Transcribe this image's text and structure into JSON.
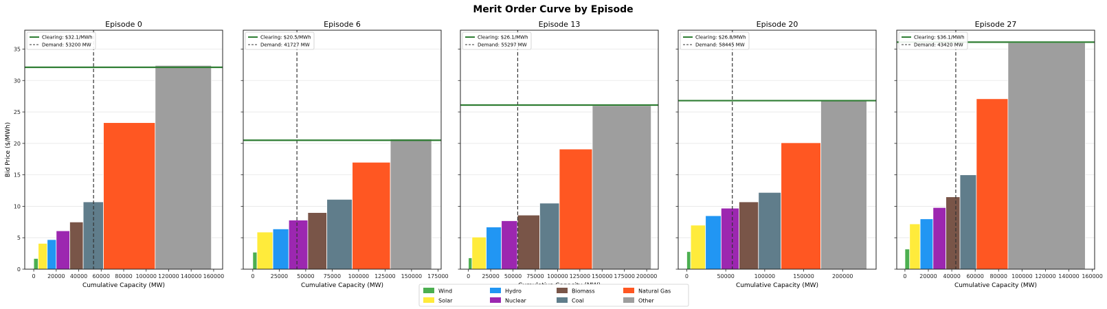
{
  "figure": {
    "title": "Merit Order Curve by Episode"
  },
  "legend_items": [
    {
      "name": "Wind",
      "color": "#4caf50"
    },
    {
      "name": "Solar",
      "color": "#ffeb3b"
    },
    {
      "name": "Hydro",
      "color": "#2196f3"
    },
    {
      "name": "Nuclear",
      "color": "#9c27b0"
    },
    {
      "name": "Biomass",
      "color": "#795548"
    },
    {
      "name": "Coal",
      "color": "#607d8b"
    },
    {
      "name": "Natural Gas",
      "color": "#ff5722"
    },
    {
      "name": "Other",
      "color": "#9e9e9e"
    }
  ],
  "chart_data": [
    {
      "type": "bar",
      "title": "Episode 0",
      "xlabel": "Cumulative Capacity (MW)",
      "ylabel": "Bid Price ($/MWh)",
      "xlim": [
        -8000,
        168000
      ],
      "ylim": [
        0,
        38
      ],
      "xticks": [
        0,
        20000,
        40000,
        60000,
        80000,
        100000,
        120000,
        140000,
        160000
      ],
      "yticks": [
        0,
        5,
        10,
        15,
        20,
        25,
        30,
        35
      ],
      "grid": true,
      "legend_position": "top-left",
      "bars": [
        {
          "source": "Wind",
          "x_start": 0,
          "x_end": 4000,
          "price": 1.7
        },
        {
          "source": "Solar",
          "x_start": 4000,
          "x_end": 12000,
          "price": 4.1
        },
        {
          "source": "Hydro",
          "x_start": 12000,
          "x_end": 20000,
          "price": 4.7
        },
        {
          "source": "Nuclear",
          "x_start": 20000,
          "x_end": 32000,
          "price": 6.1
        },
        {
          "source": "Biomass",
          "x_start": 32000,
          "x_end": 44000,
          "price": 7.5
        },
        {
          "source": "Coal",
          "x_start": 44000,
          "x_end": 62000,
          "price": 10.7
        },
        {
          "source": "Natural Gas",
          "x_start": 62000,
          "x_end": 108000,
          "price": 23.3
        },
        {
          "source": "Other",
          "x_start": 108000,
          "x_end": 158000,
          "price": 32.4
        }
      ],
      "clearing_price": 32.1,
      "demand": 53200,
      "legend_clearing": "Clearing: $32.1/MWh",
      "legend_demand": "Demand: 53200 MW"
    },
    {
      "type": "bar",
      "title": "Episode 6",
      "xlabel": "Cumulative Capacity (MW)",
      "ylabel": "",
      "xlim": [
        -9000,
        178000
      ],
      "ylim": [
        0,
        38
      ],
      "xticks": [
        0,
        25000,
        50000,
        75000,
        100000,
        125000,
        150000,
        175000
      ],
      "yticks": [
        0,
        5,
        10,
        15,
        20,
        25,
        30,
        35
      ],
      "grid": true,
      "legend_position": "top-left",
      "bars": [
        {
          "source": "Wind",
          "x_start": 0,
          "x_end": 4000,
          "price": 2.7
        },
        {
          "source": "Solar",
          "x_start": 4000,
          "x_end": 19000,
          "price": 5.9
        },
        {
          "source": "Hydro",
          "x_start": 19000,
          "x_end": 34000,
          "price": 6.4
        },
        {
          "source": "Nuclear",
          "x_start": 34000,
          "x_end": 52000,
          "price": 7.8
        },
        {
          "source": "Biomass",
          "x_start": 52000,
          "x_end": 70000,
          "price": 9.0
        },
        {
          "source": "Coal",
          "x_start": 70000,
          "x_end": 94000,
          "price": 11.1
        },
        {
          "source": "Natural Gas",
          "x_start": 94000,
          "x_end": 130000,
          "price": 17.0
        },
        {
          "source": "Other",
          "x_start": 130000,
          "x_end": 169000,
          "price": 20.7
        }
      ],
      "clearing_price": 20.5,
      "demand": 41727,
      "legend_clearing": "Clearing: $20.5/MWh",
      "legend_demand": "Demand: 41727 MW"
    },
    {
      "type": "bar",
      "title": "Episode 13",
      "xlabel": "Cumulative Capacity (MW)",
      "ylabel": "",
      "xlim": [
        -9000,
        213000
      ],
      "ylim": [
        0,
        38
      ],
      "xticks": [
        0,
        25000,
        50000,
        75000,
        100000,
        125000,
        150000,
        175000,
        200000
      ],
      "yticks": [
        0,
        5,
        10,
        15,
        20,
        25,
        30,
        35
      ],
      "grid": true,
      "legend_position": "top-left",
      "bars": [
        {
          "source": "Wind",
          "x_start": 0,
          "x_end": 4000,
          "price": 1.8
        },
        {
          "source": "Solar",
          "x_start": 4000,
          "x_end": 20000,
          "price": 5.1
        },
        {
          "source": "Hydro",
          "x_start": 20000,
          "x_end": 37000,
          "price": 6.7
        },
        {
          "source": "Nuclear",
          "x_start": 37000,
          "x_end": 55000,
          "price": 7.7
        },
        {
          "source": "Biomass",
          "x_start": 55000,
          "x_end": 80000,
          "price": 8.6
        },
        {
          "source": "Coal",
          "x_start": 80000,
          "x_end": 102000,
          "price": 10.5
        },
        {
          "source": "Natural Gas",
          "x_start": 102000,
          "x_end": 139000,
          "price": 19.1
        },
        {
          "source": "Other",
          "x_start": 139000,
          "x_end": 205000,
          "price": 26.0
        }
      ],
      "clearing_price": 26.1,
      "demand": 55297,
      "legend_clearing": "Clearing: $26.1/MWh",
      "legend_demand": "Demand: 55297 MW"
    },
    {
      "type": "bar",
      "title": "Episode 20",
      "xlabel": "Cumulative Capacity (MW)",
      "ylabel": "",
      "xlim": [
        -11000,
        243000
      ],
      "ylim": [
        0,
        38
      ],
      "xticks": [
        0,
        50000,
        100000,
        150000,
        200000
      ],
      "yticks": [
        0,
        5,
        10,
        15,
        20,
        25,
        30,
        35
      ],
      "grid": true,
      "legend_position": "top-left",
      "bars": [
        {
          "source": "Wind",
          "x_start": 0,
          "x_end": 5000,
          "price": 2.8
        },
        {
          "source": "Solar",
          "x_start": 5000,
          "x_end": 24000,
          "price": 7.0
        },
        {
          "source": "Hydro",
          "x_start": 24000,
          "x_end": 44000,
          "price": 8.5
        },
        {
          "source": "Nuclear",
          "x_start": 44000,
          "x_end": 67000,
          "price": 9.7
        },
        {
          "source": "Biomass",
          "x_start": 67000,
          "x_end": 92000,
          "price": 10.7
        },
        {
          "source": "Coal",
          "x_start": 92000,
          "x_end": 121000,
          "price": 12.2
        },
        {
          "source": "Natural Gas",
          "x_start": 121000,
          "x_end": 172000,
          "price": 20.1
        },
        {
          "source": "Other",
          "x_start": 172000,
          "x_end": 231000,
          "price": 26.8
        }
      ],
      "clearing_price": 26.8,
      "demand": 58445,
      "legend_clearing": "Clearing: $26.8/MWh",
      "legend_demand": "Demand: 58445 MW"
    },
    {
      "type": "bar",
      "title": "Episode 27",
      "xlabel": "Cumulative Capacity (MW)",
      "ylabel": "",
      "xlim": [
        -7000,
        162000
      ],
      "ylim": [
        0,
        38
      ],
      "xticks": [
        0,
        20000,
        40000,
        60000,
        80000,
        100000,
        120000,
        140000,
        160000
      ],
      "yticks": [
        0,
        5,
        10,
        15,
        20,
        25,
        30,
        35
      ],
      "grid": true,
      "legend_position": "top-left",
      "bars": [
        {
          "source": "Wind",
          "x_start": 0,
          "x_end": 4000,
          "price": 3.2
        },
        {
          "source": "Solar",
          "x_start": 4000,
          "x_end": 13000,
          "price": 7.2
        },
        {
          "source": "Hydro",
          "x_start": 13000,
          "x_end": 24000,
          "price": 8.0
        },
        {
          "source": "Nuclear",
          "x_start": 24000,
          "x_end": 35000,
          "price": 9.8
        },
        {
          "source": "Biomass",
          "x_start": 35000,
          "x_end": 47000,
          "price": 11.5
        },
        {
          "source": "Coal",
          "x_start": 47000,
          "x_end": 61000,
          "price": 15.0
        },
        {
          "source": "Natural Gas",
          "x_start": 61000,
          "x_end": 88000,
          "price": 27.1
        },
        {
          "source": "Other",
          "x_start": 88000,
          "x_end": 154000,
          "price": 36.0
        }
      ],
      "clearing_price": 36.1,
      "demand": 43420,
      "legend_clearing": "Clearing: $36.1/MWh",
      "legend_demand": "Demand: 43420 MW"
    }
  ]
}
